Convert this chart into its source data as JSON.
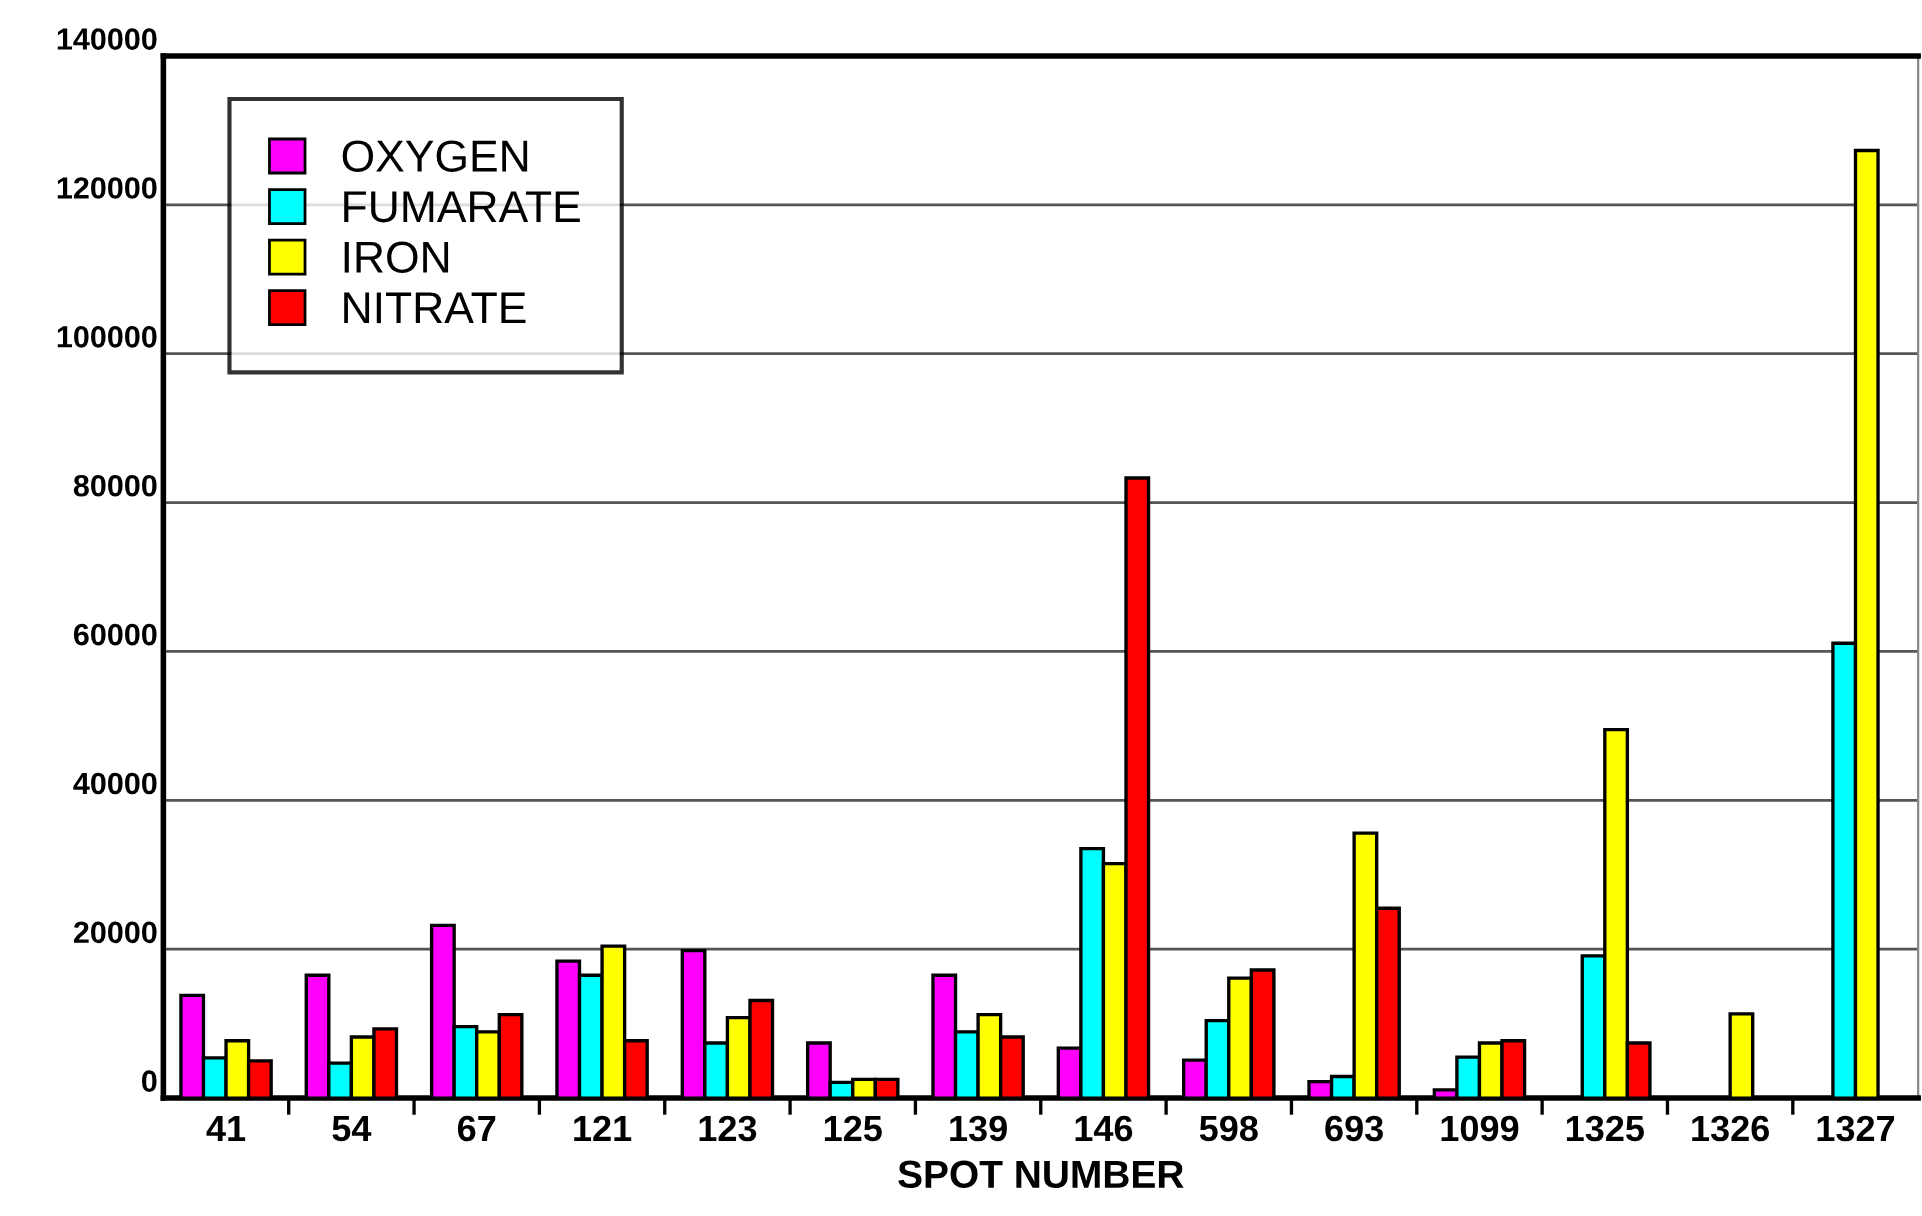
{
  "chart_data": {
    "type": "bar",
    "xlabel": "SPOT NUMBER",
    "categories": [
      "41",
      "54",
      "67",
      "121",
      "123",
      "125",
      "139",
      "146",
      "598",
      "693",
      "1099",
      "1325",
      "1326",
      "1327"
    ],
    "series": [
      {
        "name": "OXYGEN",
        "color": "#ff00ff",
        "values": [
          13800,
          16500,
          23200,
          18400,
          19800,
          7400,
          16500,
          6700,
          5100,
          2200,
          1100,
          null,
          null,
          null
        ]
      },
      {
        "name": "FUMARATE",
        "color": "#00ffff",
        "values": [
          5400,
          4700,
          9600,
          16500,
          7400,
          2100,
          8900,
          33500,
          10400,
          2900,
          5500,
          19100,
          null,
          61100
        ]
      },
      {
        "name": "IRON",
        "color": "#ffff00",
        "values": [
          7700,
          8200,
          8900,
          20400,
          10800,
          2500,
          11200,
          31500,
          16100,
          35600,
          7400,
          49500,
          11300,
          127300
        ]
      },
      {
        "name": "NITRATE",
        "color": "#ff0000",
        "values": [
          5000,
          9300,
          11200,
          7700,
          13100,
          2500,
          8200,
          83300,
          17200,
          25500,
          7700,
          7400,
          null,
          null
        ]
      }
    ],
    "ylim": [
      0,
      140000
    ],
    "yticks": [
      0,
      20000,
      40000,
      60000,
      80000,
      100000,
      120000,
      140000
    ],
    "grid": "y",
    "legend": "top left"
  }
}
